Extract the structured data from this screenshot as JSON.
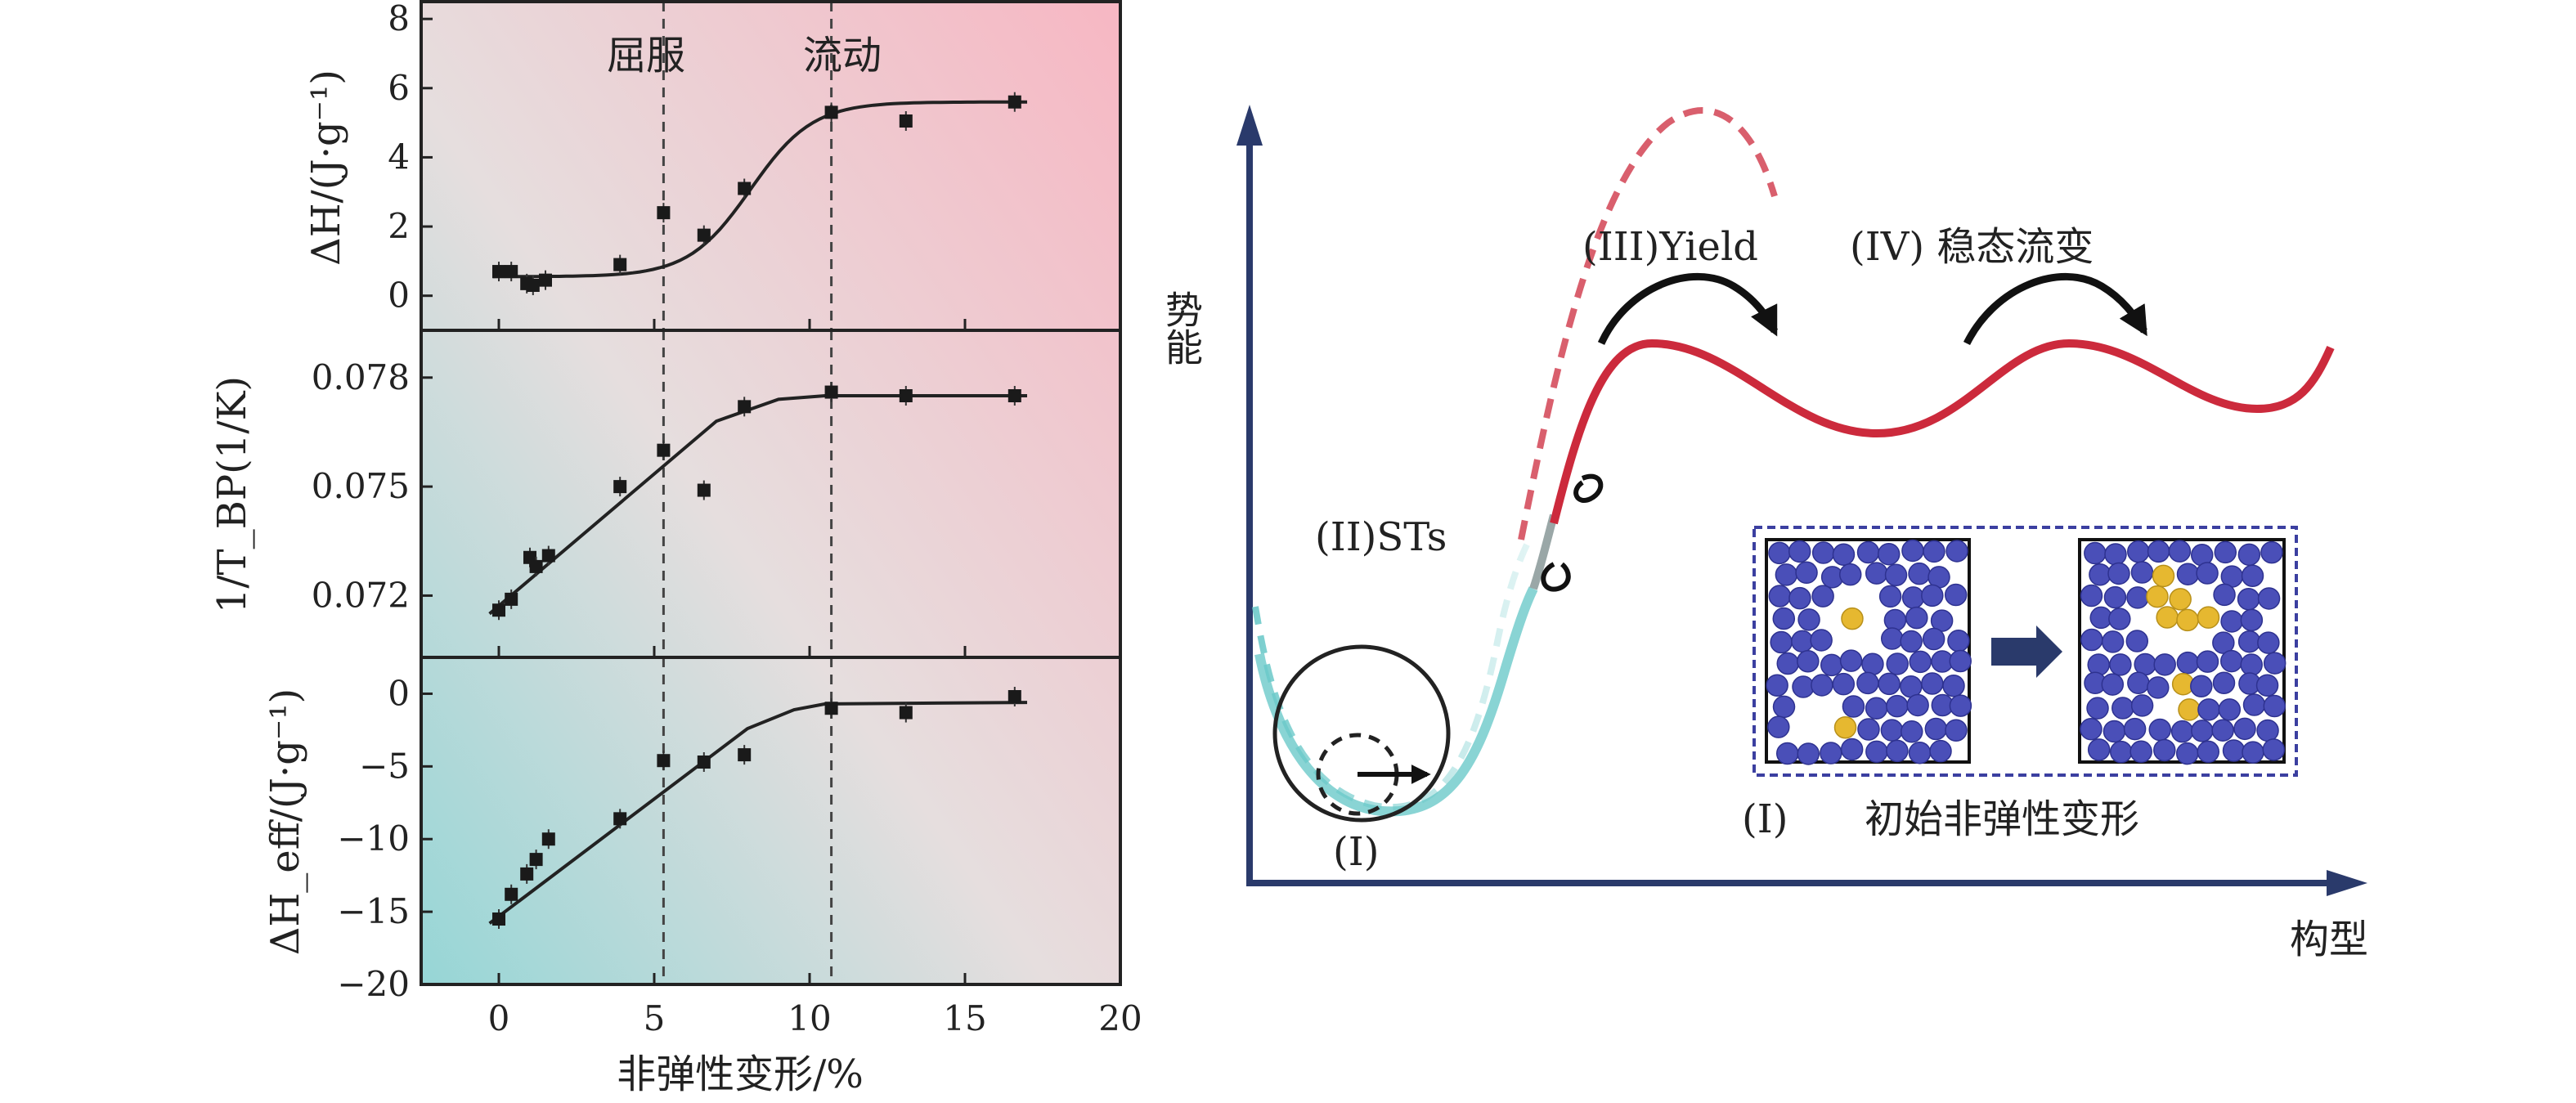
{
  "chart_data": [
    {
      "type": "scatter",
      "panel": "top",
      "ylabel": "ΔH/(J·g⁻¹)",
      "ylim": [
        -1,
        8.5
      ],
      "yticks": [
        0,
        2,
        4,
        6,
        8
      ],
      "xlim": [
        -2.5,
        20
      ],
      "vlines": [
        5.3,
        10.7
      ],
      "annotations": [
        "屈服",
        "流动"
      ],
      "points": [
        {
          "x": 0,
          "y": 0.7
        },
        {
          "x": 0.4,
          "y": 0.7
        },
        {
          "x": 0.9,
          "y": 0.35
        },
        {
          "x": 1.1,
          "y": 0.3
        },
        {
          "x": 1.5,
          "y": 0.45
        },
        {
          "x": 3.9,
          "y": 0.9
        },
        {
          "x": 5.3,
          "y": 2.4
        },
        {
          "x": 6.6,
          "y": 1.75
        },
        {
          "x": 7.9,
          "y": 3.1
        },
        {
          "x": 10.7,
          "y": 5.3
        },
        {
          "x": 13.1,
          "y": 5.05
        },
        {
          "x": 16.6,
          "y": 5.6
        }
      ],
      "fit": {
        "kind": "sigmoid",
        "low": 0.55,
        "high": 5.6,
        "center": 8.1,
        "width": 1.0,
        "x_from": -0.2,
        "x_to": 17
      }
    },
    {
      "type": "scatter",
      "panel": "middle",
      "ylabel": "1/T_BP(1/K)",
      "ylim": [
        0.0703,
        0.0793
      ],
      "yticks": [
        0.072,
        0.075,
        0.078
      ],
      "ytick_labels": [
        "0.072",
        "0.075",
        "0.078"
      ],
      "xlim": [
        -2.5,
        20
      ],
      "vlines": [
        5.3,
        10.7
      ],
      "points": [
        {
          "x": 0,
          "y": 0.0716
        },
        {
          "x": 0.4,
          "y": 0.0719
        },
        {
          "x": 1.0,
          "y": 0.07305
        },
        {
          "x": 1.2,
          "y": 0.0728
        },
        {
          "x": 1.6,
          "y": 0.0731
        },
        {
          "x": 3.9,
          "y": 0.075
        },
        {
          "x": 5.3,
          "y": 0.076
        },
        {
          "x": 6.6,
          "y": 0.0749
        },
        {
          "x": 7.9,
          "y": 0.0772
        },
        {
          "x": 10.7,
          "y": 0.0776
        },
        {
          "x": 13.1,
          "y": 0.0775
        },
        {
          "x": 16.6,
          "y": 0.0775
        }
      ],
      "fit": {
        "kind": "polyline",
        "pts": [
          [
            -0.3,
            0.0715
          ],
          [
            7.0,
            0.0768
          ],
          [
            9.0,
            0.0774
          ],
          [
            10.5,
            0.0775
          ],
          [
            17,
            0.0775
          ]
        ]
      }
    },
    {
      "type": "scatter",
      "panel": "bottom",
      "ylabel": "ΔH_eff/(J·g⁻¹)",
      "ylim": [
        -20,
        2.5
      ],
      "yticks": [
        0,
        -5,
        -10,
        -15,
        -20
      ],
      "ytick_labels": [
        "0",
        "−5",
        "−10",
        "−15",
        "−20"
      ],
      "xlim": [
        -2.5,
        20
      ],
      "xticks": [
        0,
        5,
        10,
        15,
        20
      ],
      "xlabel": "非弹性变形/%",
      "vlines": [
        5.3,
        10.7
      ],
      "points": [
        {
          "x": 0,
          "y": -15.5
        },
        {
          "x": 0.4,
          "y": -13.8
        },
        {
          "x": 0.9,
          "y": -12.4
        },
        {
          "x": 1.2,
          "y": -11.4
        },
        {
          "x": 1.6,
          "y": -10.0
        },
        {
          "x": 3.9,
          "y": -8.6
        },
        {
          "x": 5.3,
          "y": -4.6
        },
        {
          "x": 6.6,
          "y": -4.7
        },
        {
          "x": 7.9,
          "y": -4.2
        },
        {
          "x": 10.7,
          "y": -1.0
        },
        {
          "x": 13.1,
          "y": -1.3
        },
        {
          "x": 16.6,
          "y": -0.2
        }
      ],
      "fit": {
        "kind": "polyline",
        "pts": [
          [
            -0.3,
            -15.8
          ],
          [
            8.0,
            -2.4
          ],
          [
            9.5,
            -1.1
          ],
          [
            10.5,
            -0.7
          ],
          [
            17,
            -0.6
          ]
        ]
      }
    }
  ],
  "diagram": {
    "yaxis_label": "势能",
    "xaxis_label": "构型",
    "label_yield": "(III)Yield",
    "label_flow": "(IV) 稳态流变",
    "label_sts": "(II)STs",
    "label_i_bottom": "(I)",
    "label_i_inset": "(I)",
    "inset_caption": "初始非弹性变形",
    "colors": {
      "axis": "#2a3a6b",
      "red": "#cc2a3c",
      "cyan": "#6cc9c9",
      "blue_atom": "#4a4fb8",
      "yellow_atom": "#e6b830"
    }
  }
}
